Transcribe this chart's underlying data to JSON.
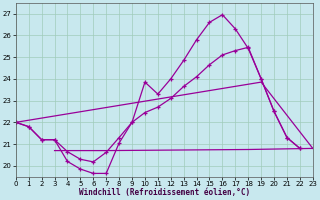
{
  "background_color": "#c8e8ee",
  "grid_color": "#a0ccbb",
  "line_color": "#990099",
  "xlim": [
    0,
    23
  ],
  "ylim": [
    19.5,
    27.5
  ],
  "yticks": [
    20,
    21,
    22,
    23,
    24,
    25,
    26,
    27
  ],
  "xticks": [
    0,
    1,
    2,
    3,
    4,
    5,
    6,
    7,
    8,
    9,
    10,
    11,
    12,
    13,
    14,
    15,
    16,
    17,
    18,
    19,
    20,
    21,
    22,
    23
  ],
  "xlabel": "Windchill (Refroidissement éolien,°C)",
  "line1_x": [
    0,
    1,
    2,
    3,
    4,
    5,
    6,
    7,
    8,
    9,
    10,
    11,
    12,
    13,
    14,
    15,
    16,
    17,
    18,
    19,
    20,
    21,
    22,
    23
  ],
  "line1_y": [
    22.0,
    21.8,
    21.2,
    21.2,
    20.2,
    19.85,
    19.65,
    19.65,
    21.05,
    22.0,
    23.85,
    23.3,
    24.0,
    24.85,
    25.8,
    26.6,
    26.95,
    26.3,
    25.4,
    24.0,
    22.5,
    21.3,
    20.8,
    null
  ],
  "line2_x": [
    0,
    1,
    2,
    3,
    4,
    5,
    6,
    7,
    8,
    9,
    10,
    11,
    12,
    13,
    14,
    15,
    16,
    17,
    18,
    19,
    20,
    21,
    22,
    23
  ],
  "line2_y": [
    22.0,
    21.8,
    21.2,
    21.2,
    20.65,
    20.3,
    20.18,
    20.62,
    21.3,
    22.0,
    22.45,
    22.7,
    23.1,
    23.65,
    24.1,
    24.65,
    25.1,
    25.3,
    25.45,
    24.0,
    22.5,
    21.3,
    20.8,
    null
  ],
  "line3_x": [
    3,
    7,
    18,
    23
  ],
  "line3_y": [
    20.7,
    20.7,
    20.75,
    20.8
  ],
  "line4_x": [
    0,
    19,
    23
  ],
  "line4_y": [
    22.0,
    23.85,
    20.8
  ]
}
